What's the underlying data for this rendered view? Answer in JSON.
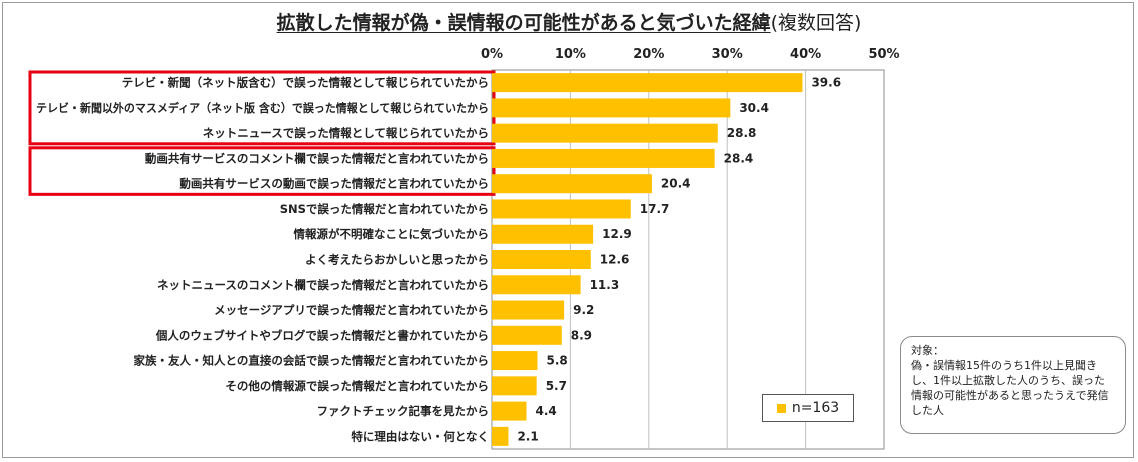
{
  "title": {
    "main": "拡散した情報が偽・誤情報の可能性があると気づいた経緯",
    "sub": "(複数回答)"
  },
  "colors": {
    "bar": "#FFC000",
    "highlight_box": "#E60012",
    "gridline": "#BFBFBF"
  },
  "legend": {
    "label": "n=163"
  },
  "note": {
    "heading": "対象：",
    "body": "偽・誤情報15件のうち1件以上見聞きし、1件以上拡散した人のうち、誤った情報の可能性があると思ったうえで発信した人"
  },
  "chart_data": {
    "type": "bar",
    "orientation": "horizontal",
    "categories": [
      "テレビ・新聞（ネット版含む）で誤った情報として報じられていたから",
      "テレビ・新聞以外のマスメディア（ネット版 含む）で誤った情報として報じられていたから",
      "ネットニュースで誤った情報として報じられていたから",
      "動画共有サービスのコメント欄で誤った情報だと言われていたから",
      "動画共有サービスの動画で誤った情報だと言われていたから",
      "SNSで誤った情報だと言われていたから",
      "情報源が不明確なことに気づいたから",
      "よく考えたらおかしいと思ったから",
      "ネットニュースのコメント欄で誤った情報だと言われていたから",
      "メッセージアプリで誤った情報だと言われていたから",
      "個人のウェブサイトやブログで誤った情報だと書かれていたから",
      "家族・友人・知人との直接の会話で誤った情報だと言われていたから",
      "その他の情報源で誤った情報だと言われていたから",
      "ファクトチェック記事を見たから",
      "特に理由はない・何となく"
    ],
    "values": [
      39.6,
      30.4,
      28.8,
      28.4,
      20.4,
      17.7,
      12.9,
      12.6,
      11.3,
      9.2,
      8.9,
      5.8,
      5.7,
      4.4,
      2.1
    ],
    "value_labels": [
      "39.6",
      "30.4",
      "28.8",
      "28.4",
      "20.4",
      "17.7",
      "12.9",
      "12.6",
      "11.3",
      "9.2",
      "8.9",
      "5.8",
      "5.7",
      "4.4",
      "2.1"
    ],
    "xlim": [
      0,
      50
    ],
    "xticks": [
      "0%",
      "10%",
      "20%",
      "30%",
      "40%",
      "50%"
    ],
    "highlight_groups": [
      [
        0,
        2
      ],
      [
        3,
        4
      ]
    ],
    "grid": true,
    "legend_position": "bottom-right"
  }
}
